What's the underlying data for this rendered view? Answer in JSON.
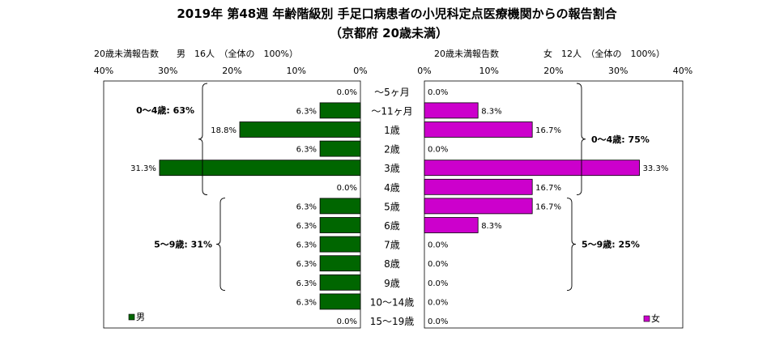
{
  "chart_data": {
    "type": "bar",
    "title": "2019年 第48週 年齢階級別 手足口病患者の小児科定点医療機関からの報告割合",
    "subtitle": "（京都府 20歳未満）",
    "categories": [
      "～5ヶ月",
      "～11ヶ月",
      "1歳",
      "2歳",
      "3歳",
      "4歳",
      "5歳",
      "6歳",
      "7歳",
      "8歳",
      "9歳",
      "10～14歳",
      "15～19歳"
    ],
    "series": [
      {
        "name": "男",
        "header": "20歳未満報告数　　男　16人　（全体の　100%）",
        "color": "#006600",
        "values": [
          0.0,
          6.3,
          18.8,
          6.3,
          31.3,
          0.0,
          6.3,
          6.3,
          6.3,
          6.3,
          6.3,
          6.3,
          0.0
        ],
        "labels": [
          "0.0%",
          "6.3%",
          "18.8%",
          "6.3%",
          "31.3%",
          "0.0%",
          "6.3%",
          "6.3%",
          "6.3%",
          "6.3%",
          "6.3%",
          "6.3%",
          "0.0%"
        ]
      },
      {
        "name": "女",
        "header": "20歳未満報告数　　　　　女　12人　（全体の　100%）",
        "color": "#cc00cc",
        "values": [
          0.0,
          8.3,
          16.7,
          0.0,
          33.3,
          16.7,
          16.7,
          8.3,
          0.0,
          0.0,
          0.0,
          0.0,
          0.0
        ],
        "labels": [
          "0.0%",
          "8.3%",
          "16.7%",
          "0.0%",
          "33.3%",
          "16.7%",
          "16.7%",
          "8.3%",
          "0.0%",
          "0.0%",
          "0.0%",
          "0.0%",
          "0.0%"
        ]
      }
    ],
    "xlim": [
      0,
      40
    ],
    "male_ticks": [
      "40%",
      "30%",
      "20%",
      "10%",
      "0%"
    ],
    "female_ticks": [
      "0%",
      "10%",
      "20%",
      "30%",
      "40%"
    ],
    "annotations": [
      {
        "side": "male",
        "text": "0～4歳: 63%",
        "from": 0,
        "to": 5
      },
      {
        "side": "male",
        "text": "5～9歳: 31%",
        "from": 6,
        "to": 10
      },
      {
        "side": "female",
        "text": "0～4歳: 75%",
        "from": 0,
        "to": 5
      },
      {
        "side": "female",
        "text": "5～9歳: 25%",
        "from": 6,
        "to": 10
      }
    ],
    "legend": {
      "position": "bottom-left / bottom-right",
      "male": "男",
      "female": "女"
    }
  }
}
